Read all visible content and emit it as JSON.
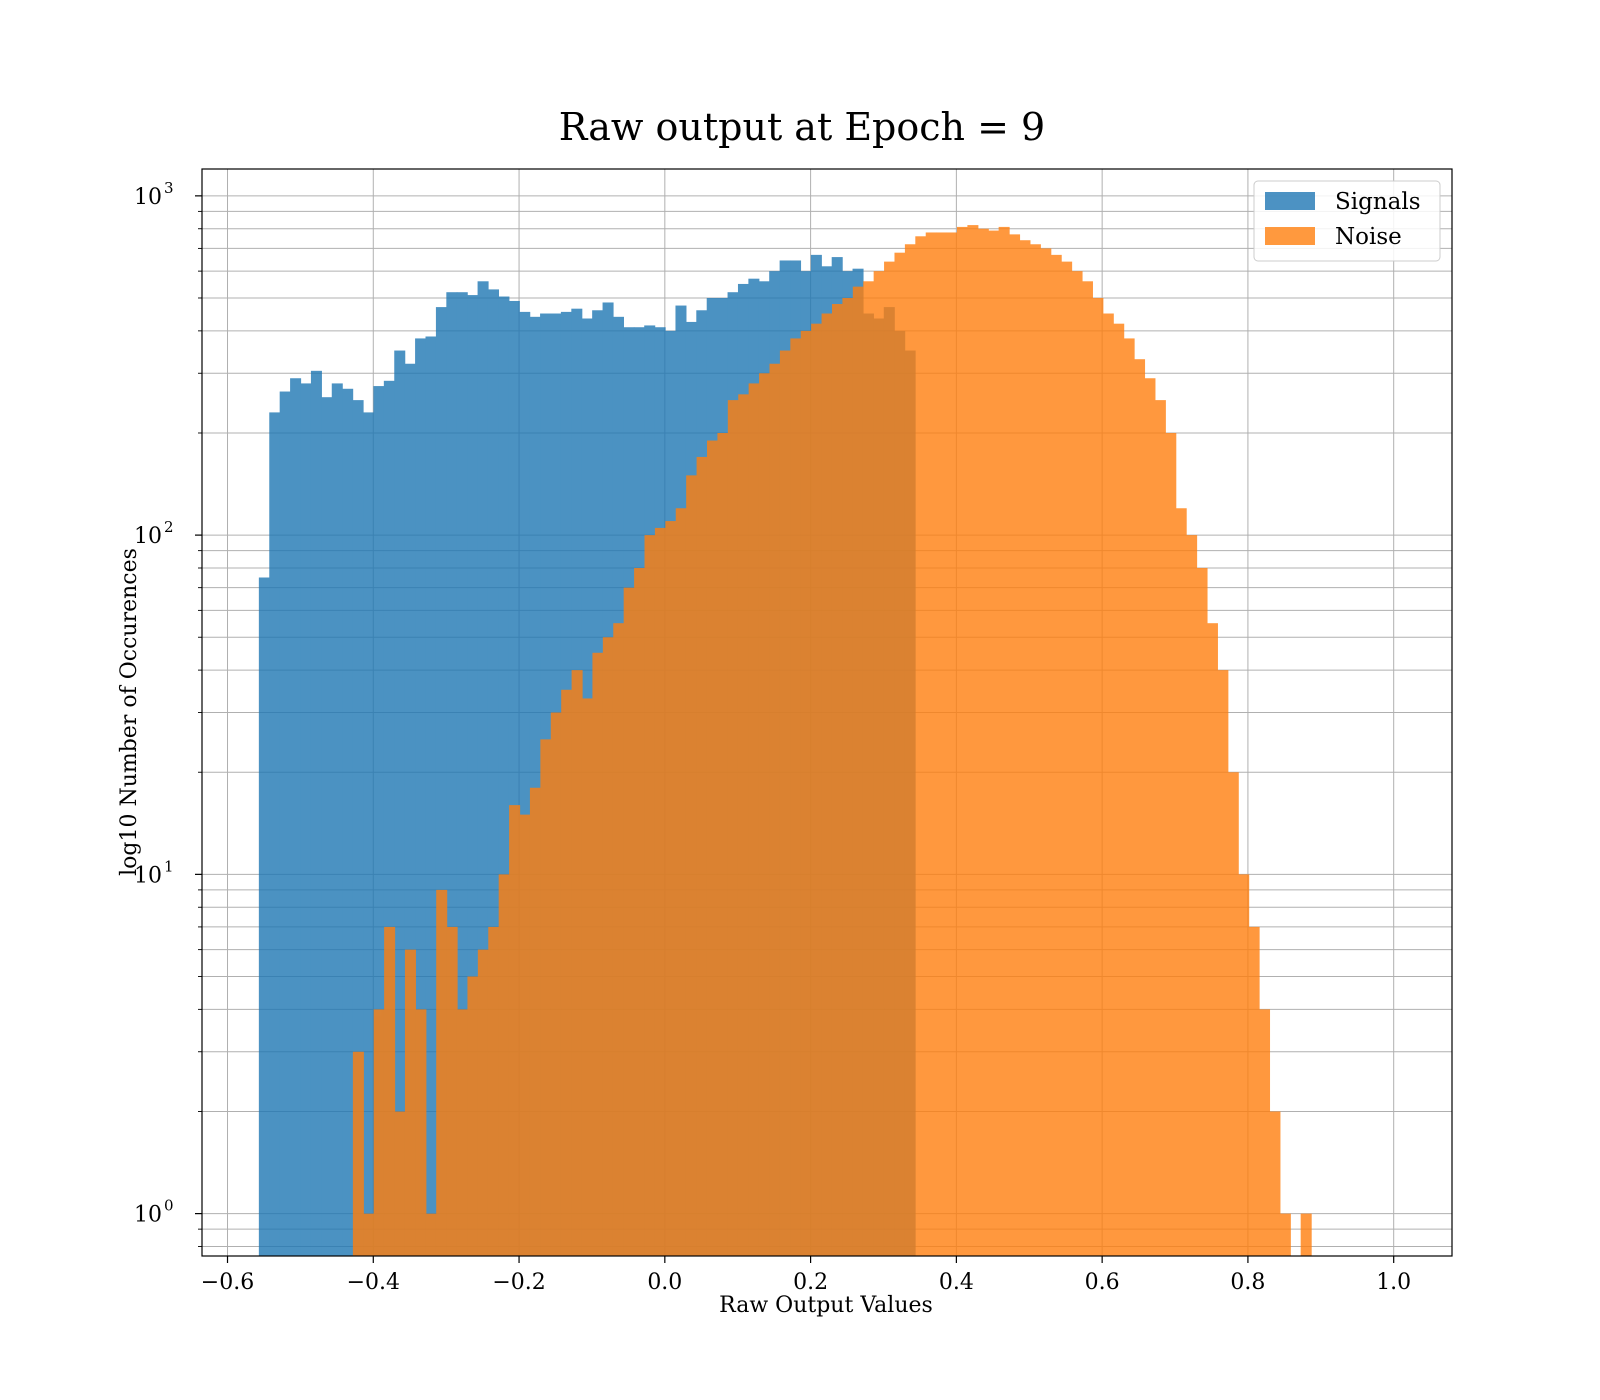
{
  "chart_data": {
    "type": "bar",
    "title": "Raw output at Epoch = 9",
    "xlabel": "Raw Output Values",
    "ylabel": "log10 Number of Occurences",
    "xlim": [
      -0.635,
      1.08
    ],
    "ylim": [
      0.75,
      1200
    ],
    "yscale": "log",
    "grid": true,
    "legend_position": "top-right",
    "x_ticks": [
      {
        "value": -0.6,
        "label": "−0.6"
      },
      {
        "value": -0.4,
        "label": "−0.4"
      },
      {
        "value": -0.2,
        "label": "−0.2"
      },
      {
        "value": 0.0,
        "label": "0.0"
      },
      {
        "value": 0.2,
        "label": "0.2"
      },
      {
        "value": 0.4,
        "label": "0.4"
      },
      {
        "value": 0.6,
        "label": "0.6"
      },
      {
        "value": 0.8,
        "label": "0.8"
      },
      {
        "value": 1.0,
        "label": "1.0"
      }
    ],
    "y_ticks": [
      {
        "value": 1,
        "base": "10",
        "exp": "0"
      },
      {
        "value": 10,
        "base": "10",
        "exp": "1"
      },
      {
        "value": 100,
        "base": "10",
        "exp": "2"
      },
      {
        "value": 1000,
        "base": "10",
        "exp": "3"
      }
    ],
    "series": [
      {
        "name": "Signals",
        "color": "#1f77b4",
        "bin_start": -0.557,
        "bin_width": 0.01429,
        "counts": [
          75,
          230,
          265,
          290,
          280,
          305,
          255,
          280,
          270,
          250,
          230,
          275,
          285,
          350,
          320,
          380,
          385,
          470,
          520,
          520,
          510,
          560,
          530,
          505,
          490,
          455,
          440,
          450,
          450,
          455,
          465,
          435,
          460,
          485,
          440,
          410,
          410,
          415,
          410,
          400,
          475,
          425,
          460,
          500,
          500,
          520,
          550,
          570,
          560,
          600,
          645,
          645,
          600,
          670,
          620,
          660,
          600,
          610,
          450,
          435,
          470,
          400,
          350
        ]
      },
      {
        "name": "Noise",
        "color": "#ff7f0e",
        "bin_start": -0.428,
        "bin_width": 0.01429,
        "counts": [
          3,
          1,
          4,
          7,
          2,
          6,
          4,
          1,
          9,
          7,
          4,
          5,
          6,
          7,
          10,
          16,
          15,
          18,
          25,
          30,
          35,
          40,
          33,
          45,
          50,
          55,
          70,
          80,
          100,
          105,
          110,
          120,
          150,
          170,
          190,
          200,
          250,
          260,
          280,
          300,
          320,
          350,
          380,
          400,
          420,
          450,
          480,
          500,
          540,
          560,
          600,
          640,
          680,
          720,
          760,
          780,
          780,
          780,
          810,
          820,
          800,
          790,
          810,
          770,
          740,
          720,
          700,
          670,
          640,
          600,
          560,
          500,
          450,
          420,
          380,
          330,
          290,
          250,
          200,
          120,
          100,
          80,
          55,
          40,
          20,
          10,
          7,
          4,
          2,
          1,
          0,
          1
        ]
      }
    ]
  }
}
